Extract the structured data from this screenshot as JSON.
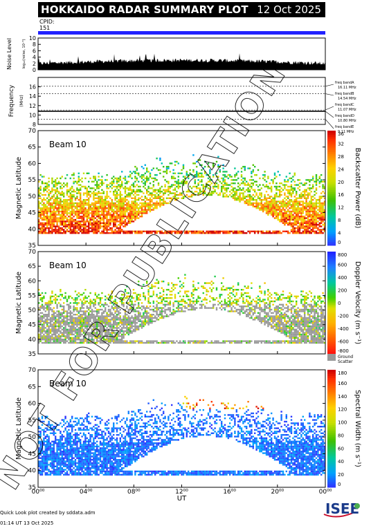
{
  "header": {
    "title": "HOKKAIDO RADAR SUMMARY PLOT",
    "date": "12 Oct 2025",
    "cpid_label": "CPID:",
    "cpid_value": "151"
  },
  "watermark": "NOT FOR PUBLICATION",
  "footer": {
    "line1": "Quick Look plot created by sddata.adm",
    "line2": "01:14 UT 13 Oct 2025"
  },
  "logo_text": "ISEE",
  "colors": {
    "title_bg": "#000000",
    "cpid_bar": "#2222ff",
    "ground_scatter": "#999999"
  },
  "chart_data": [
    {
      "type": "area",
      "id": "noise",
      "ylabel": "Noise Level",
      "ylabel_sub": "log₁₀(noise, 10⁻³)",
      "ylim": [
        0,
        10
      ],
      "yticks": [
        "0",
        "2",
        "4",
        "6",
        "8",
        "10"
      ],
      "typical_level": 2
    },
    {
      "type": "line",
      "id": "frequency",
      "ylabel": "Frequency",
      "ylabel_sub": "(MHz)",
      "ylim": [
        8,
        18
      ],
      "yticks": [
        "8",
        "10",
        "12",
        "14",
        "16"
      ],
      "bands": [
        {
          "name": "freq bandA",
          "freq": "16.11 MHz",
          "value": 16.11
        },
        {
          "name": "freq bandB",
          "freq": "14.54 MHz",
          "value": 14.54
        },
        {
          "name": "freq bandC",
          "freq": "11.07 MHz",
          "value": 11.07
        },
        {
          "name": "freq bandD",
          "freq": "10.80 MHz",
          "value": 10.8
        },
        {
          "name": "freq bandE",
          "freq": "9.11 MHz",
          "value": 9.11
        }
      ],
      "observed_freq": 10.8
    },
    {
      "type": "heatmap",
      "id": "power",
      "beam_label": "Beam 10",
      "ylabel": "Magnetic Latitude",
      "ylim": [
        35,
        70
      ],
      "yticks": [
        "35",
        "40",
        "45",
        "50",
        "55",
        "60",
        "65",
        "70"
      ],
      "colorbar_label": "Backscatter Power (dB)",
      "colorbar_ticks": [
        "0",
        "4",
        "8",
        "12",
        "16",
        "20",
        "24",
        "28",
        "32",
        "36"
      ],
      "colorbar_range": [
        0,
        36
      ]
    },
    {
      "type": "heatmap",
      "id": "velocity",
      "beam_label": "Beam 10",
      "ylabel": "Magnetic Latitude",
      "ylim": [
        35,
        70
      ],
      "yticks": [
        "35",
        "40",
        "45",
        "50",
        "55",
        "60",
        "65",
        "70"
      ],
      "colorbar_label": "Doppler Velocity (m s⁻¹)",
      "colorbar_ticks": [
        "-800",
        "-600",
        "-400",
        "-200",
        "0",
        "200",
        "400",
        "600",
        "800"
      ],
      "colorbar_range": [
        -800,
        800
      ],
      "ground_label": "Ground Scatter"
    },
    {
      "type": "heatmap",
      "id": "width",
      "beam_label": "Beam 10",
      "ylabel": "Magnetic Latitude",
      "ylim": [
        35,
        70
      ],
      "yticks": [
        "35",
        "40",
        "45",
        "50",
        "55",
        "60",
        "65",
        "70"
      ],
      "colorbar_label": "Spectral Width (m s⁻¹)",
      "colorbar_ticks": [
        "0",
        "20",
        "40",
        "60",
        "80",
        "100",
        "120",
        "140",
        "160",
        "180"
      ],
      "colorbar_range": [
        0,
        180
      ]
    }
  ],
  "xaxis": {
    "label": "UT",
    "range_hours": [
      0,
      24
    ],
    "ticks": [
      {
        "h": 0,
        "text": "00⁰⁰"
      },
      {
        "h": 4,
        "text": "04⁰⁰"
      },
      {
        "h": 8,
        "text": "08⁰⁰"
      },
      {
        "h": 12,
        "text": "12⁰⁰"
      },
      {
        "h": 16,
        "text": "16⁰⁰"
      },
      {
        "h": 20,
        "text": "20⁰⁰"
      },
      {
        "h": 24,
        "text": "00⁰⁰"
      }
    ]
  }
}
